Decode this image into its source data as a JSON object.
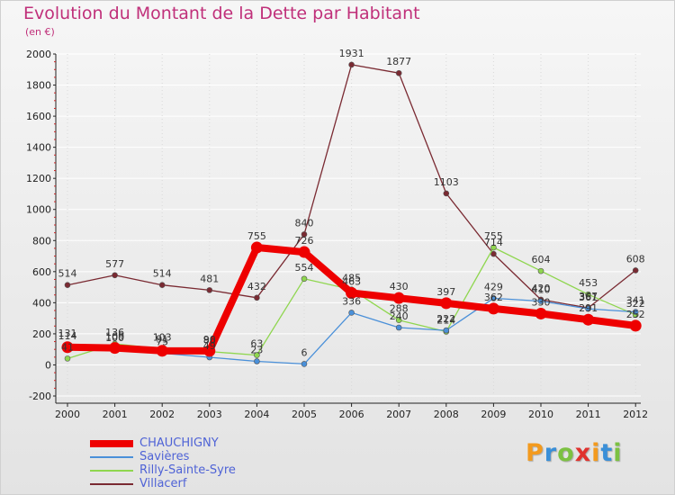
{
  "header": {
    "title": "Evolution du Montant de la Dette par Habitant",
    "subtitle": "(en €)"
  },
  "colors": {
    "title": "#c0307a",
    "legend_text": "#4f63d6",
    "axis": "#222222",
    "grid": "#ffffff"
  },
  "logo": {
    "text": "Proxiti",
    "colors": [
      "#f39a1e",
      "#3a8fd8",
      "#7cc142",
      "#e0322e",
      "#f39a1e",
      "#3a8fd8",
      "#7cc142"
    ]
  },
  "chart_data": {
    "type": "line",
    "title": "Evolution du Montant de la Dette par Habitant",
    "subtitle": "(en €)",
    "x": [
      "2000",
      "2001",
      "2002",
      "2003",
      "2004",
      "2005",
      "2006",
      "2007",
      "2008",
      "2009",
      "2010",
      "2011",
      "2012"
    ],
    "yticks": [
      "-200",
      "0",
      "200",
      "400",
      "600",
      "800",
      "1000",
      "1200",
      "1400",
      "1600",
      "1800",
      "2000"
    ],
    "ylim": [
      -200,
      2000
    ],
    "grid": false,
    "legend_position": "bottom-left",
    "series": [
      {
        "name": "Villacerf",
        "color": "#7a2a32",
        "values": [
          514,
          577,
          514,
          481,
          432,
          840,
          1931,
          1877,
          1103,
          714,
          420,
          367,
          608
        ],
        "labels": [
          "514",
          "577",
          "514",
          "481",
          "432",
          "840",
          "1931",
          "1877",
          "1103",
          "714",
          "420",
          "367",
          "608"
        ],
        "style": "thin"
      },
      {
        "name": "Rilly-Sainte-Syre",
        "color": "#8fd64f",
        "values": [
          41,
          136,
          103,
          86,
          63,
          554,
          485,
          288,
          214,
          755,
          604,
          453,
          322
        ],
        "labels": [
          "41",
          "136",
          "103",
          "86",
          "63",
          "554",
          "485",
          "288",
          "214",
          "755",
          "604",
          "453",
          "322"
        ],
        "style": "thin"
      },
      {
        "name": "Savières",
        "color": "#4a90d9",
        "values": [
          131,
          100,
          75,
          49,
          23,
          6,
          336,
          240,
          222,
          429,
          410,
          361,
          341
        ],
        "labels": [
          "131",
          "100",
          "75",
          "49",
          "23",
          "6",
          "336",
          "240",
          "222",
          "429",
          "410",
          "361",
          "341"
        ],
        "style": "thin"
      },
      {
        "name": "CHAUCHIGNY",
        "color": "#ee0000",
        "values": [
          114,
          109,
          91,
          90,
          755,
          726,
          463,
          430,
          397,
          362,
          330,
          291,
          252
        ],
        "labels": [
          "114",
          "109",
          "91",
          "90",
          "755",
          "726",
          "463",
          "430",
          "397",
          "362",
          "330",
          "291",
          "252"
        ],
        "style": "thick"
      }
    ]
  },
  "legend": [
    {
      "label": "CHAUCHIGNY",
      "color": "#ee0000",
      "thickness": 8
    },
    {
      "label": "Savières",
      "color": "#4a90d9",
      "thickness": 2
    },
    {
      "label": "Rilly-Sainte-Syre",
      "color": "#8fd64f",
      "thickness": 2
    },
    {
      "label": "Villacerf",
      "color": "#7a2a32",
      "thickness": 2
    }
  ]
}
